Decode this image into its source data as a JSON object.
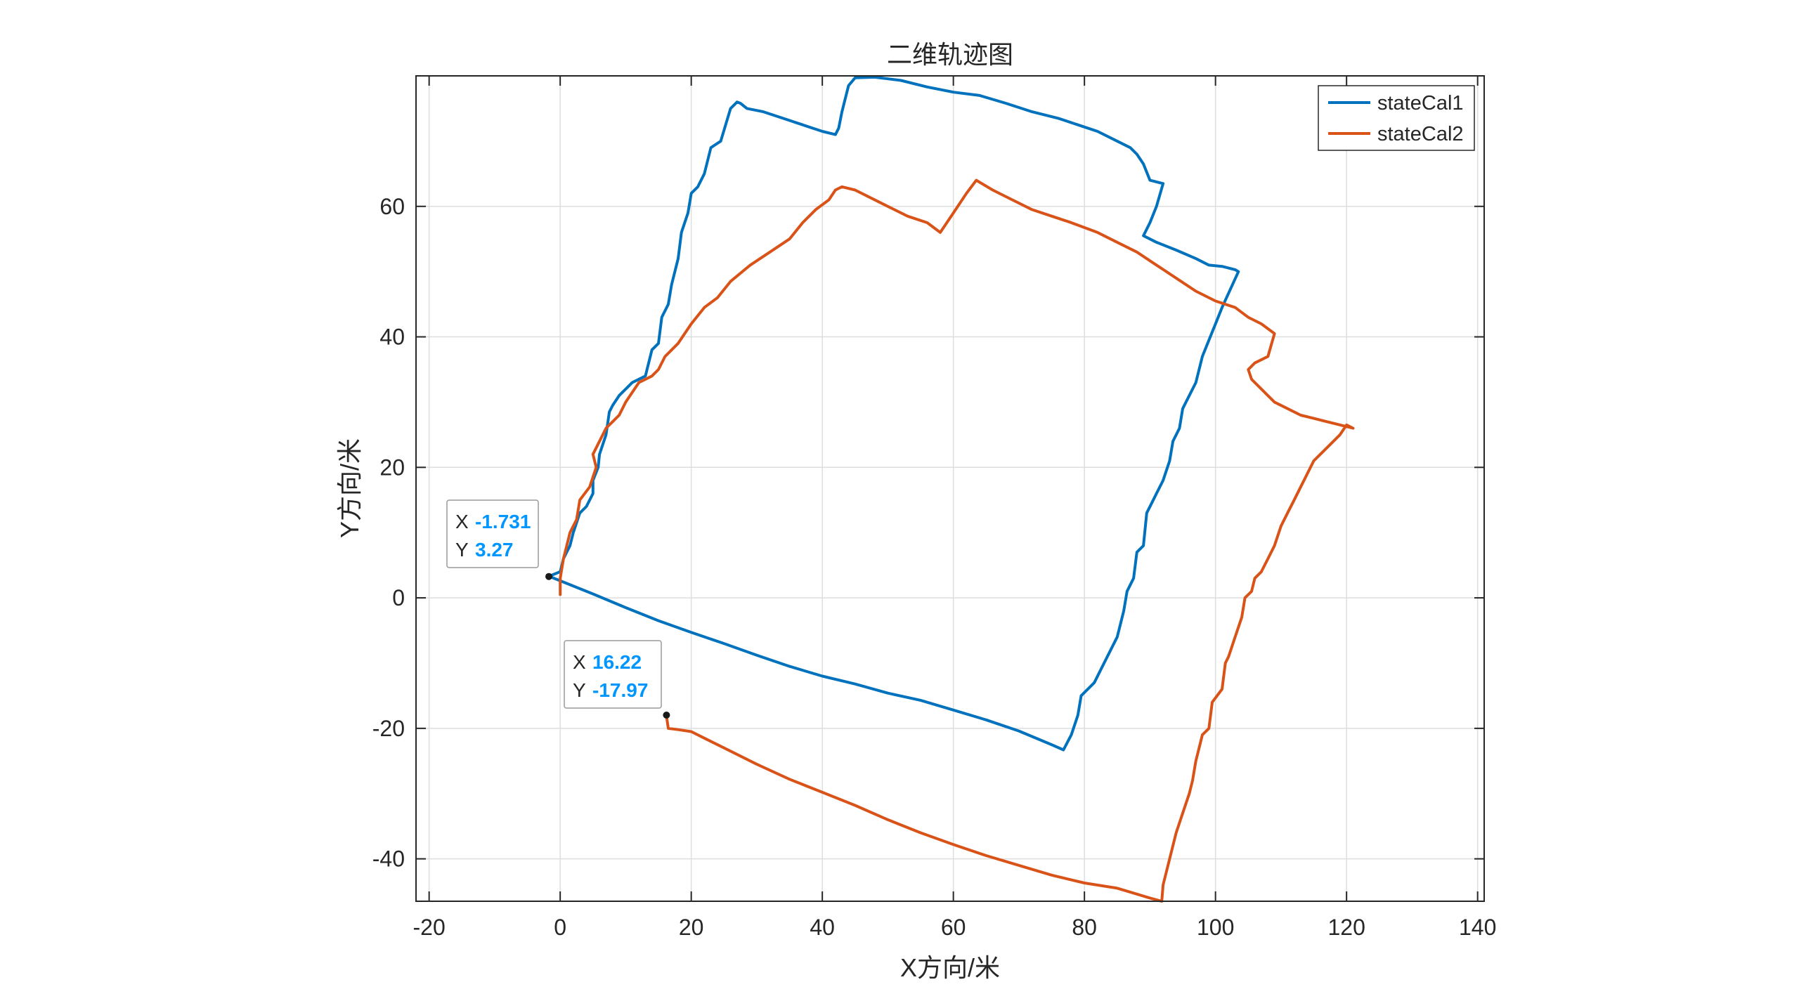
{
  "chart_data": {
    "type": "line",
    "title": "二维轨迹图",
    "xlabel": "X方向/米",
    "ylabel": "Y方向/米",
    "xlim": [
      -22,
      141
    ],
    "ylim": [
      -46.5,
      80
    ],
    "xticks": [
      -20,
      0,
      20,
      40,
      60,
      80,
      100,
      120,
      140
    ],
    "yticks": [
      -40,
      -20,
      0,
      20,
      40,
      60
    ],
    "grid": true,
    "legend_position": "top-right",
    "series": [
      {
        "name": "stateCal1",
        "color": "#0072BD",
        "points": [
          [
            -1.7,
            3.3
          ],
          [
            5,
            0.6
          ],
          [
            10,
            -1.5
          ],
          [
            15,
            -3.5
          ],
          [
            20,
            -5.3
          ],
          [
            25,
            -7
          ],
          [
            30,
            -8.8
          ],
          [
            35,
            -10.5
          ],
          [
            40,
            -12
          ],
          [
            45,
            -13.2
          ],
          [
            50,
            -14.6
          ],
          [
            55,
            -15.7
          ],
          [
            60,
            -17.2
          ],
          [
            65,
            -18.7
          ],
          [
            70,
            -20.4
          ],
          [
            75,
            -22.5
          ],
          [
            76.8,
            -23.3
          ],
          [
            78,
            -21
          ],
          [
            79,
            -18
          ],
          [
            79.5,
            -15
          ],
          [
            81.5,
            -13
          ],
          [
            83,
            -10
          ],
          [
            85,
            -6
          ],
          [
            86,
            -2
          ],
          [
            86.5,
            1
          ],
          [
            87.5,
            3
          ],
          [
            88,
            7
          ],
          [
            89,
            8
          ],
          [
            89.5,
            13
          ],
          [
            90.5,
            15
          ],
          [
            91,
            16
          ],
          [
            92,
            18
          ],
          [
            93,
            21
          ],
          [
            93.5,
            24
          ],
          [
            94.5,
            26
          ],
          [
            95,
            29
          ],
          [
            97,
            33
          ],
          [
            98,
            37
          ],
          [
            99,
            39.5
          ],
          [
            100,
            42
          ],
          [
            101,
            44.5
          ],
          [
            103.5,
            50
          ],
          [
            103,
            50.3
          ],
          [
            101,
            50.8
          ],
          [
            99,
            51
          ],
          [
            97,
            52
          ],
          [
            94,
            53.3
          ],
          [
            91,
            54.5
          ],
          [
            89,
            55.5
          ],
          [
            90,
            57.5
          ],
          [
            91,
            60
          ],
          [
            92,
            63.5
          ],
          [
            90,
            64
          ],
          [
            89,
            66.5
          ],
          [
            88,
            68
          ],
          [
            87,
            69
          ],
          [
            85,
            70
          ],
          [
            82,
            71.5
          ],
          [
            79,
            72.5
          ],
          [
            76,
            73.5
          ],
          [
            72,
            74.5
          ],
          [
            68,
            75.8
          ],
          [
            64,
            77
          ],
          [
            60,
            77.5
          ],
          [
            56,
            78.3
          ],
          [
            52,
            79.3
          ],
          [
            48,
            79.8
          ],
          [
            45,
            79.7
          ],
          [
            44,
            78.5
          ],
          [
            43,
            74.5
          ],
          [
            42.5,
            72
          ],
          [
            42,
            71
          ],
          [
            40,
            71.5
          ],
          [
            37,
            72.5
          ],
          [
            34,
            73.5
          ],
          [
            31,
            74.5
          ],
          [
            28.5,
            75
          ],
          [
            27.5,
            75.8
          ],
          [
            27,
            76
          ],
          [
            26,
            75
          ],
          [
            24.5,
            70
          ],
          [
            23,
            69
          ],
          [
            22,
            65
          ],
          [
            21,
            63
          ],
          [
            20,
            62
          ],
          [
            19.5,
            59
          ],
          [
            18.5,
            56
          ],
          [
            18,
            52
          ],
          [
            17,
            48
          ],
          [
            16.5,
            45
          ],
          [
            15.5,
            43
          ],
          [
            15,
            39
          ],
          [
            14,
            38
          ],
          [
            13,
            34
          ],
          [
            11,
            33
          ],
          [
            10,
            32
          ],
          [
            9,
            31
          ],
          [
            8,
            29.5
          ],
          [
            7.5,
            28.5
          ],
          [
            7,
            25
          ],
          [
            6,
            22
          ],
          [
            5.8,
            20
          ],
          [
            5,
            18
          ],
          [
            5,
            16
          ],
          [
            4,
            14
          ],
          [
            3,
            13
          ],
          [
            2,
            10
          ],
          [
            1.5,
            8
          ],
          [
            0.5,
            6
          ],
          [
            0,
            4
          ],
          [
            -1.7,
            3.3
          ]
        ]
      },
      {
        "name": "stateCal2",
        "color": "#D95319",
        "points": [
          [
            16.2,
            -18
          ],
          [
            16.5,
            -20
          ],
          [
            18,
            -20.2
          ],
          [
            20,
            -20.5
          ],
          [
            22,
            -21.5
          ],
          [
            25,
            -23
          ],
          [
            30,
            -25.5
          ],
          [
            35,
            -27.8
          ],
          [
            40,
            -29.8
          ],
          [
            45,
            -31.8
          ],
          [
            50,
            -34
          ],
          [
            55,
            -36
          ],
          [
            60,
            -37.8
          ],
          [
            65,
            -39.5
          ],
          [
            70,
            -41
          ],
          [
            75,
            -42.5
          ],
          [
            80,
            -43.7
          ],
          [
            85,
            -44.5
          ],
          [
            90,
            -46
          ],
          [
            91.8,
            -46.5
          ],
          [
            92,
            -44
          ],
          [
            93,
            -40
          ],
          [
            94,
            -36
          ],
          [
            95,
            -33
          ],
          [
            96,
            -30
          ],
          [
            96.5,
            -28
          ],
          [
            97,
            -25
          ],
          [
            98,
            -21
          ],
          [
            99,
            -20
          ],
          [
            99.5,
            -16
          ],
          [
            101,
            -14
          ],
          [
            101.5,
            -10
          ],
          [
            102,
            -9
          ],
          [
            103,
            -6
          ],
          [
            104,
            -3
          ],
          [
            104.5,
            0
          ],
          [
            105.5,
            1
          ],
          [
            106,
            3
          ],
          [
            107,
            4
          ],
          [
            108,
            6
          ],
          [
            109,
            8
          ],
          [
            110,
            11
          ],
          [
            111,
            13
          ],
          [
            112,
            15
          ],
          [
            113,
            17
          ],
          [
            114,
            19
          ],
          [
            115,
            21
          ],
          [
            116,
            22
          ],
          [
            118,
            24
          ],
          [
            119,
            25
          ],
          [
            120,
            26.5
          ],
          [
            121,
            26
          ],
          [
            119,
            26.5
          ],
          [
            117,
            27
          ],
          [
            115,
            27.5
          ],
          [
            113,
            28
          ],
          [
            111,
            29
          ],
          [
            109,
            30
          ],
          [
            107,
            32
          ],
          [
            105.5,
            33.5
          ],
          [
            105,
            35
          ],
          [
            106,
            36
          ],
          [
            108,
            37
          ],
          [
            109,
            40.5
          ],
          [
            107,
            42
          ],
          [
            105,
            43
          ],
          [
            103,
            44.5
          ],
          [
            100,
            45.5
          ],
          [
            97,
            47
          ],
          [
            94,
            49
          ],
          [
            91,
            51
          ],
          [
            88,
            53
          ],
          [
            85,
            54.5
          ],
          [
            82,
            56
          ],
          [
            78,
            57.5
          ],
          [
            75,
            58.5
          ],
          [
            72,
            59.5
          ],
          [
            69,
            61
          ],
          [
            66,
            62.5
          ],
          [
            63.5,
            64
          ],
          [
            62,
            62
          ],
          [
            60,
            59
          ],
          [
            58,
            56
          ],
          [
            56,
            57.5
          ],
          [
            53,
            58.5
          ],
          [
            50,
            60
          ],
          [
            47,
            61.5
          ],
          [
            45,
            62.5
          ],
          [
            43,
            63
          ],
          [
            42,
            62.5
          ],
          [
            41,
            61
          ],
          [
            39,
            59.5
          ],
          [
            37,
            57.5
          ],
          [
            35,
            55
          ],
          [
            32,
            53
          ],
          [
            29,
            51
          ],
          [
            26,
            48.5
          ],
          [
            24,
            46
          ],
          [
            22,
            44.5
          ],
          [
            20,
            42
          ],
          [
            18,
            39
          ],
          [
            16,
            37
          ],
          [
            15,
            35
          ],
          [
            14,
            34
          ],
          [
            12,
            33
          ],
          [
            10,
            30
          ],
          [
            9,
            28
          ],
          [
            8,
            27
          ],
          [
            7,
            26
          ],
          [
            6,
            24
          ],
          [
            5,
            22
          ],
          [
            5.5,
            20
          ],
          [
            4.5,
            17
          ],
          [
            3,
            15
          ],
          [
            2.5,
            12
          ],
          [
            1.5,
            10
          ],
          [
            1,
            8
          ],
          [
            0.5,
            6
          ],
          [
            0,
            3
          ],
          [
            0,
            0.5
          ]
        ]
      }
    ],
    "annotations": [
      {
        "x_label": "X",
        "y_label": "Y",
        "x_value": "-1.731",
        "y_value": "3.27",
        "x": -1.731,
        "y": 3.27
      },
      {
        "x_label": "X",
        "y_label": "Y",
        "x_value": "16.22",
        "y_value": "-17.97",
        "x": 16.22,
        "y": -17.97
      }
    ]
  }
}
